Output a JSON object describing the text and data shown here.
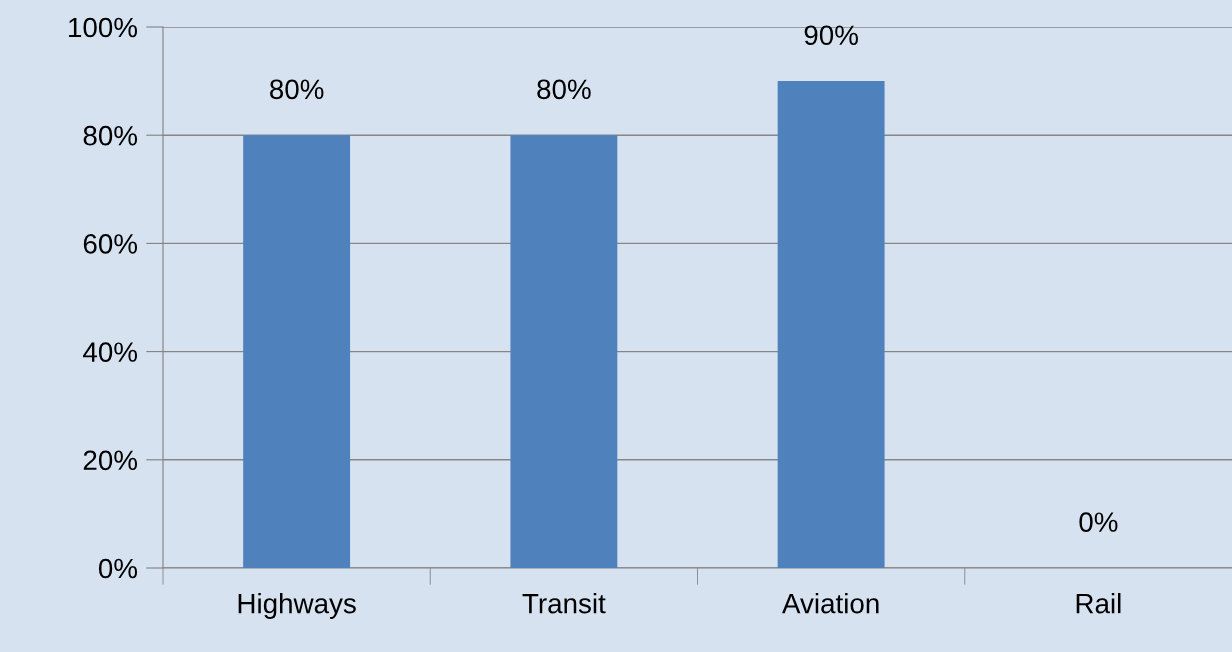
{
  "chart_data": {
    "type": "bar",
    "categories": [
      "Highways",
      "Transit",
      "Aviation",
      "Rail"
    ],
    "values": [
      80,
      80,
      90,
      0
    ],
    "color": "#4f81bd",
    "value_labels": [
      "80%",
      "80%",
      "90%",
      "0%"
    ],
    "ylim": [
      0,
      100
    ],
    "yticks": [
      {
        "value": 0,
        "label": "0%"
      },
      {
        "value": 20,
        "label": "20%"
      },
      {
        "value": 40,
        "label": "40%"
      },
      {
        "value": 60,
        "label": "60%"
      },
      {
        "value": 80,
        "label": "80%"
      },
      {
        "value": 100,
        "label": "100%"
      }
    ],
    "grid": "y",
    "legend": false
  }
}
